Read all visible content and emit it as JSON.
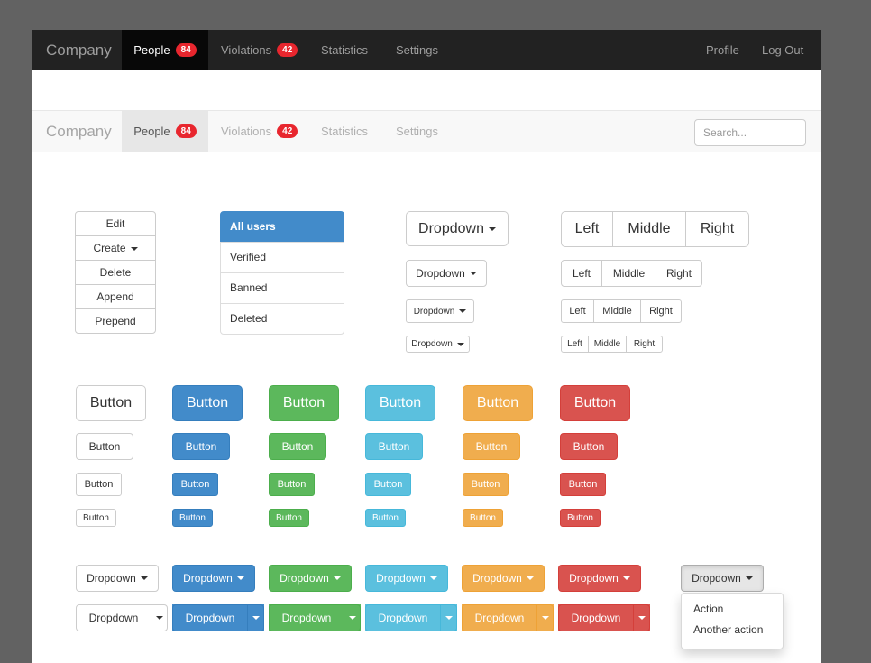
{
  "navbar_dark": {
    "brand": "Company",
    "items": [
      {
        "label": "People",
        "badge": "84"
      },
      {
        "label": "Violations",
        "badge": "42"
      },
      {
        "label": "Statistics"
      },
      {
        "label": "Settings"
      }
    ],
    "right_items": [
      "Profile",
      "Log Out"
    ]
  },
  "navbar_light": {
    "brand": "Company",
    "items": [
      {
        "label": "People",
        "badge": "84"
      },
      {
        "label": "Violations",
        "badge": "42"
      },
      {
        "label": "Statistics"
      },
      {
        "label": "Settings"
      }
    ],
    "search_placeholder": "Search..."
  },
  "vertical_group": [
    "Edit",
    "Create",
    "Delete",
    "Append",
    "Prepend"
  ],
  "list_group": [
    "All users",
    "Verified",
    "Banned",
    "Deleted"
  ],
  "dropdown_label": "Dropdown",
  "segmented": [
    "Left",
    "Middle",
    "Right"
  ],
  "button_label": "Button",
  "menu_items": [
    "Action",
    "Another action"
  ],
  "colors": {
    "default": "#ffffff",
    "primary": "#428bca",
    "success": "#5cb85c",
    "info": "#5bc0de",
    "warning": "#f0ad4e",
    "danger": "#d9534f",
    "badge": "#e8262e"
  }
}
